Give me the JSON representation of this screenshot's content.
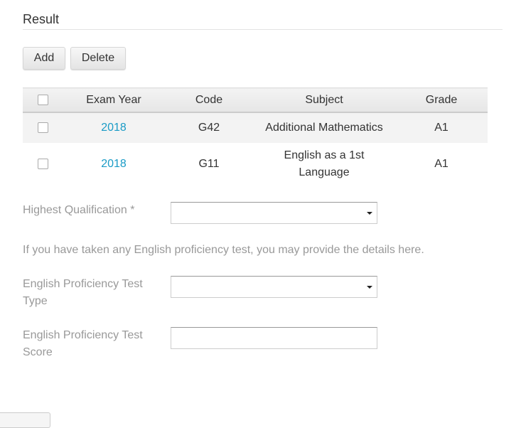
{
  "section": {
    "title": "Result"
  },
  "toolbar": {
    "add_label": "Add",
    "delete_label": "Delete"
  },
  "table": {
    "headers": [
      "Exam Year",
      "Code",
      "Subject",
      "Grade"
    ],
    "rows": [
      {
        "exam_year": "2018",
        "code": "G42",
        "subject": "Additional Mathematics",
        "grade": "A1"
      },
      {
        "exam_year": "2018",
        "code": "G11",
        "subject": "English as a 1st Language",
        "grade": "A1"
      }
    ]
  },
  "form": {
    "highest_qualification": {
      "label": "Highest Qualification *",
      "value": ""
    },
    "note": "If you have taken any English proficiency test, you may provide the details here.",
    "test_type": {
      "label": "English Proficiency Test Type",
      "value": ""
    },
    "test_score": {
      "label": "English Proficiency Test Score",
      "value": ""
    }
  },
  "colors": {
    "link": "#1a9bc6"
  }
}
